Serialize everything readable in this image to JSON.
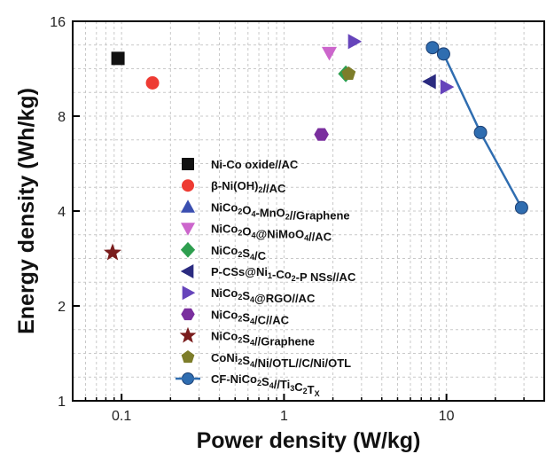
{
  "chart_data": {
    "type": "scatter",
    "xlabel": "Power density (W/kg)",
    "ylabel": "Energy density (Wh/kg)",
    "xscale": "log",
    "yscale": "log",
    "xlim": [
      0.05,
      40
    ],
    "ylim": [
      1,
      16
    ],
    "x_ticks": [
      0.1,
      1,
      10
    ],
    "x_tick_labels": [
      "0.1",
      "1",
      "10"
    ],
    "y_ticks": [
      1,
      2,
      4,
      8,
      16
    ],
    "y_tick_labels": [
      "1",
      "2",
      "4",
      "8",
      "16"
    ],
    "grid": true,
    "legend_position": "center",
    "series": [
      {
        "name_parts": [
          [
            "Ni-Co oxide//AC",
            ""
          ]
        ],
        "marker": "square",
        "color": "#111111",
        "points": [
          [
            0.095,
            12.2
          ]
        ]
      },
      {
        "name_parts": [
          [
            "β-Ni(OH)",
            ""
          ],
          [
            "2",
            "sub"
          ],
          [
            "//AC",
            ""
          ]
        ],
        "marker": "circle",
        "color": "#ee3b33",
        "points": [
          [
            0.155,
            10.2
          ]
        ]
      },
      {
        "name_parts": [
          [
            "NiCo",
            ""
          ],
          [
            "2",
            "sub"
          ],
          [
            "O",
            ""
          ],
          [
            "4",
            "sub"
          ],
          [
            "-MnO",
            ""
          ],
          [
            "2",
            "sub"
          ],
          [
            "//Graphene",
            ""
          ]
        ],
        "marker": "triangle-up",
        "color": "#3a4fb0",
        "points": []
      },
      {
        "name_parts": [
          [
            "NiCo",
            ""
          ],
          [
            "2",
            "sub"
          ],
          [
            "O",
            ""
          ],
          [
            "4",
            "sub"
          ],
          [
            "@NiMoO",
            ""
          ],
          [
            "4",
            "sub"
          ],
          [
            "//AC",
            ""
          ]
        ],
        "marker": "triangle-down",
        "color": "#cc66cc",
        "points": [
          [
            1.9,
            12.7
          ]
        ]
      },
      {
        "name_parts": [
          [
            "NiCo",
            ""
          ],
          [
            "2",
            "sub"
          ],
          [
            "S",
            ""
          ],
          [
            "4",
            "sub"
          ],
          [
            "/C",
            ""
          ]
        ],
        "marker": "diamond",
        "color": "#2e9e4f",
        "points": [
          [
            2.4,
            10.9
          ]
        ]
      },
      {
        "name_parts": [
          [
            "P-CSs@Ni",
            ""
          ],
          [
            "1",
            "sub"
          ],
          [
            "-Co",
            ""
          ],
          [
            "2",
            "sub"
          ],
          [
            "-P NSs//AC",
            ""
          ]
        ],
        "marker": "triangle-left",
        "color": "#2b2b80",
        "points": [
          [
            7.9,
            10.3
          ]
        ]
      },
      {
        "name_parts": [
          [
            "NiCo",
            ""
          ],
          [
            "2",
            "sub"
          ],
          [
            "S",
            ""
          ],
          [
            "4",
            "sub"
          ],
          [
            "@RGO//AC",
            ""
          ]
        ],
        "marker": "triangle-right",
        "color": "#6644bb",
        "points": [
          [
            2.7,
            13.8
          ],
          [
            10.0,
            9.9
          ]
        ]
      },
      {
        "name_parts": [
          [
            "NiCo",
            ""
          ],
          [
            "2",
            "sub"
          ],
          [
            "S",
            ""
          ],
          [
            "4",
            "sub"
          ],
          [
            "/C//AC",
            ""
          ]
        ],
        "marker": "hexagon",
        "color": "#7a2f9e",
        "points": [
          [
            1.7,
            7.0
          ]
        ]
      },
      {
        "name_parts": [
          [
            "NiCo",
            ""
          ],
          [
            "2",
            "sub"
          ],
          [
            "S",
            ""
          ],
          [
            "4",
            "sub"
          ],
          [
            "//Graphene",
            ""
          ]
        ],
        "marker": "star",
        "color": "#7a1d1d",
        "points": [
          [
            0.088,
            2.95
          ]
        ]
      },
      {
        "name_parts": [
          [
            "CoNi",
            ""
          ],
          [
            "2",
            "sub"
          ],
          [
            "S",
            ""
          ],
          [
            "4",
            "sub"
          ],
          [
            "/Ni/OTL//C/Ni/OTL",
            ""
          ]
        ],
        "marker": "pentagon",
        "color": "#7d7d2a",
        "points": [
          [
            2.5,
            10.9
          ]
        ]
      },
      {
        "name_parts": [
          [
            "CF-NiCo",
            ""
          ],
          [
            "2",
            "sub"
          ],
          [
            "S",
            ""
          ],
          [
            "4",
            "sub"
          ],
          [
            "//Ti",
            ""
          ],
          [
            "3",
            "sub"
          ],
          [
            "C",
            ""
          ],
          [
            "2",
            "sub"
          ],
          [
            "T",
            ""
          ],
          [
            "X",
            "sub"
          ]
        ],
        "marker": "circle",
        "color": "#2f6db0",
        "line": true,
        "points": [
          [
            8.2,
            13.2
          ],
          [
            9.6,
            12.6
          ],
          [
            16.2,
            7.1
          ],
          [
            29.0,
            4.1
          ]
        ]
      }
    ]
  }
}
